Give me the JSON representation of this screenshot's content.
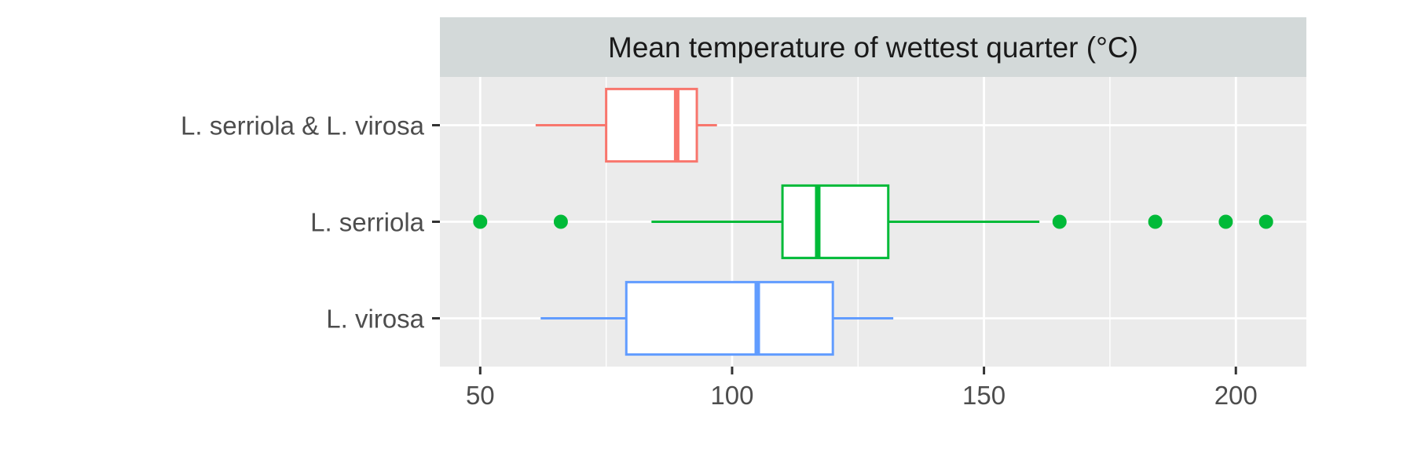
{
  "chart_data": {
    "type": "boxplot",
    "orientation": "horizontal",
    "facet_title": "Mean temperature of wettest quarter (°C)",
    "xlabel": "",
    "ylabel": "",
    "xlim": [
      42,
      214
    ],
    "x_ticks": [
      50,
      100,
      150,
      200
    ],
    "x_tick_labels": [
      "50",
      "100",
      "150",
      "200"
    ],
    "grid": true,
    "legend": "none",
    "panel_background": "#ebebeb",
    "strip_background": "#d3d9d9",
    "categories": [
      "L. serriola & L. virosa",
      "L. serriola",
      "L. virosa"
    ],
    "series": [
      {
        "category": "L. serriola & L. virosa",
        "color": "#f8766d",
        "whisker_low": 61,
        "q1": 75,
        "median": 89,
        "q3": 93,
        "whisker_high": 97,
        "outliers": []
      },
      {
        "category": "L. serriola",
        "color": "#00ba38",
        "whisker_low": 84,
        "q1": 110,
        "median": 117,
        "q3": 131,
        "whisker_high": 161,
        "outliers": [
          50,
          66,
          165,
          184,
          198,
          206
        ]
      },
      {
        "category": "L. virosa",
        "color": "#619cff",
        "whisker_low": 62,
        "q1": 79,
        "median": 105,
        "q3": 120,
        "whisker_high": 132,
        "outliers": []
      }
    ]
  }
}
